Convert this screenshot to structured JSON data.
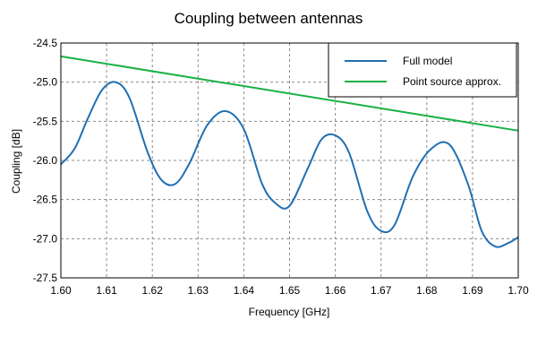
{
  "chart_data": {
    "type": "line",
    "title": "Coupling between antennas",
    "xlabel": "Frequency [GHz]",
    "ylabel": "Coupling [dB]",
    "xlim": [
      1.6,
      1.7
    ],
    "ylim": [
      -27.5,
      -24.5
    ],
    "grid": true,
    "legend_position": "top-right",
    "x_ticks": [
      "1.60",
      "1.61",
      "1.62",
      "1.63",
      "1.64",
      "1.65",
      "1.66",
      "1.67",
      "1.68",
      "1.69",
      "1.70"
    ],
    "y_ticks": [
      "-24.5",
      "-25.0",
      "-25.5",
      "-26.0",
      "-26.5",
      "-27.0",
      "-27.5"
    ],
    "series": [
      {
        "name": "Full model",
        "color": "#1f6fb4",
        "x": [
          1.6,
          1.603,
          1.606,
          1.609,
          1.612,
          1.615,
          1.619,
          1.622,
          1.625,
          1.628,
          1.632,
          1.636,
          1.64,
          1.644,
          1.647,
          1.65,
          1.654,
          1.657,
          1.66,
          1.663,
          1.667,
          1.67,
          1.673,
          1.677,
          1.681,
          1.685,
          1.689,
          1.692,
          1.695,
          1.698,
          1.7
        ],
        "y": [
          -26.05,
          -25.85,
          -25.45,
          -25.1,
          -25.0,
          -25.2,
          -25.9,
          -26.25,
          -26.3,
          -26.05,
          -25.55,
          -25.37,
          -25.6,
          -26.3,
          -26.55,
          -26.58,
          -26.1,
          -25.73,
          -25.68,
          -25.9,
          -26.65,
          -26.9,
          -26.82,
          -26.2,
          -25.85,
          -25.8,
          -26.3,
          -26.9,
          -27.1,
          -27.05,
          -26.98
        ]
      },
      {
        "name": "Point source approx.",
        "color": "#1ab046",
        "x": [
          1.6,
          1.7
        ],
        "y": [
          -24.67,
          -25.62
        ]
      }
    ]
  }
}
